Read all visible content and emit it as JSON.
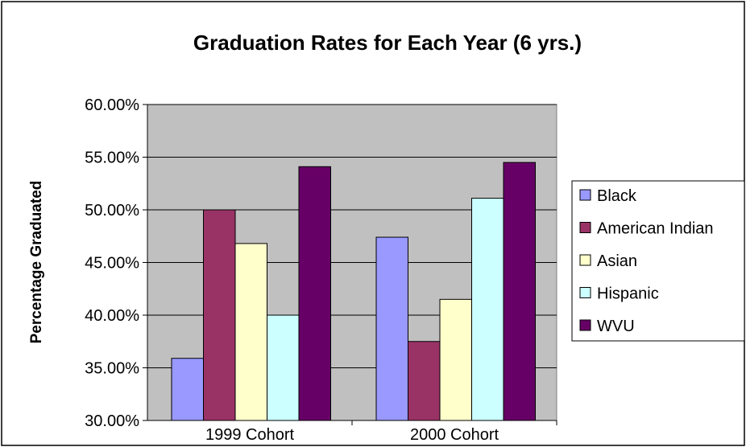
{
  "chart_data": {
    "type": "bar",
    "title": "Graduation Rates for Each Year (6 yrs.)",
    "xlabel": "",
    "ylabel": "Percentage Graduated",
    "categories": [
      "1999 Cohort",
      "2000 Cohort"
    ],
    "ylim": [
      30,
      60
    ],
    "yticks": [
      30,
      35,
      40,
      45,
      50,
      55,
      60
    ],
    "ytick_labels": [
      "30.00%",
      "35.00%",
      "40.00%",
      "45.00%",
      "50.00%",
      "55.00%",
      "60.00%"
    ],
    "grid": true,
    "legend_position": "right",
    "plot_background": "#c0c0c0",
    "series": [
      {
        "name": "Black",
        "color": "#9999ff",
        "values": [
          35.9,
          47.4
        ]
      },
      {
        "name": "American Indian",
        "color": "#993366",
        "values": [
          50.0,
          37.5
        ]
      },
      {
        "name": "Asian",
        "color": "#ffffcc",
        "values": [
          46.8,
          41.5
        ]
      },
      {
        "name": "Hispanic",
        "color": "#ccffff",
        "values": [
          40.0,
          51.1
        ]
      },
      {
        "name": "WVU",
        "color": "#660066",
        "values": [
          54.1,
          54.5
        ]
      }
    ]
  }
}
